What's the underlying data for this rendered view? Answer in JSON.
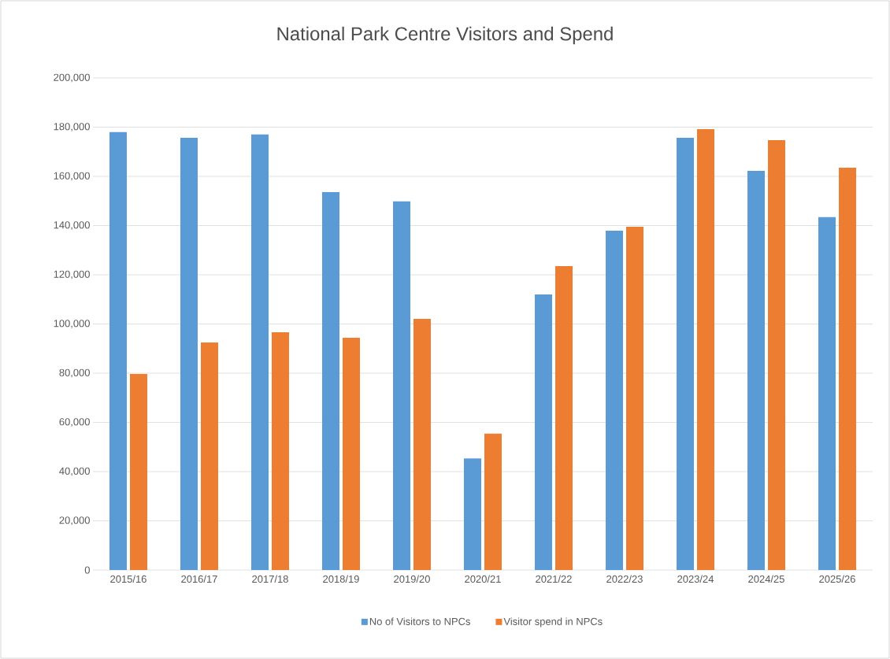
{
  "chart_data": {
    "type": "bar",
    "title": "National Park Centre Visitors and Spend",
    "categories": [
      "2015/16",
      "2016/17",
      "2017/18",
      "2018/19",
      "2019/20",
      "2020/21",
      "2021/22",
      "2022/23",
      "2023/24",
      "2024/25",
      "2025/26"
    ],
    "series": [
      {
        "name": "No of Visitors to NPCs",
        "color": "#5b9bd5",
        "values": [
          178000,
          175700,
          177000,
          153600,
          149800,
          45400,
          112000,
          137900,
          175700,
          162200,
          143400
        ]
      },
      {
        "name": "Visitor spend in NPCs",
        "color": "#ed7d31",
        "values": [
          79700,
          92500,
          96600,
          94400,
          102100,
          55400,
          123500,
          139500,
          179200,
          174700,
          163500
        ]
      }
    ],
    "ylim": [
      0,
      200000
    ],
    "yticks": [
      {
        "value": 0,
        "label": "0"
      },
      {
        "value": 20000,
        "label": "20,000"
      },
      {
        "value": 40000,
        "label": "40,000"
      },
      {
        "value": 60000,
        "label": "60,000"
      },
      {
        "value": 80000,
        "label": "80,000"
      },
      {
        "value": 100000,
        "label": "100,000"
      },
      {
        "value": 120000,
        "label": "120,000"
      },
      {
        "value": 140000,
        "label": "140,000"
      },
      {
        "value": 160000,
        "label": "160,000"
      },
      {
        "value": 180000,
        "label": "180,000"
      },
      {
        "value": 200000,
        "label": "200,000"
      }
    ],
    "grid": "y",
    "legend": "bottom"
  }
}
